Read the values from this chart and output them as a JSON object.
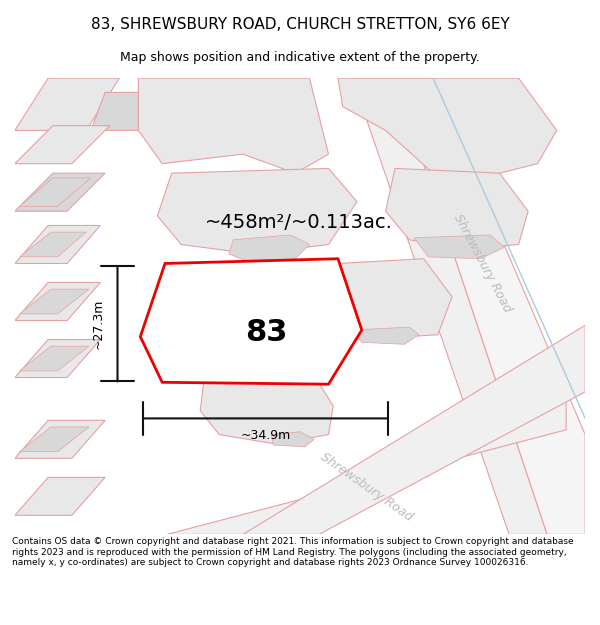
{
  "title": "83, SHREWSBURY ROAD, CHURCH STRETTON, SY6 6EY",
  "subtitle": "Map shows position and indicative extent of the property.",
  "footer": "Contains OS data © Crown copyright and database right 2021. This information is subject to Crown copyright and database rights 2023 and is reproduced with the permission of HM Land Registry. The polygons (including the associated geometry, namely x, y co-ordinates) are subject to Crown copyright and database rights 2023 Ordnance Survey 100026316.",
  "area_text": "~458m²/~0.113ac.",
  "number_label": "83",
  "dim_width": "~34.9m",
  "dim_height": "~27.3m",
  "road_label_upper": "Shrewsbury Road",
  "road_label_lower": "Shrewsbury Road",
  "bg_color": "#ffffff",
  "map_bg": "#f7f7f7",
  "red_outline": "#ee0000",
  "pink_line": "#e8a0a0",
  "gray_fill": "#d8d8d8",
  "light_gray": "#e8e8e8",
  "road_gray": "#c8c8c8",
  "dim_color": "#111111",
  "road_text_color": "#bbbbbb",
  "blue_line": "#aaccdd",
  "title_fontsize": 11,
  "subtitle_fontsize": 9,
  "footer_fontsize": 6.5
}
